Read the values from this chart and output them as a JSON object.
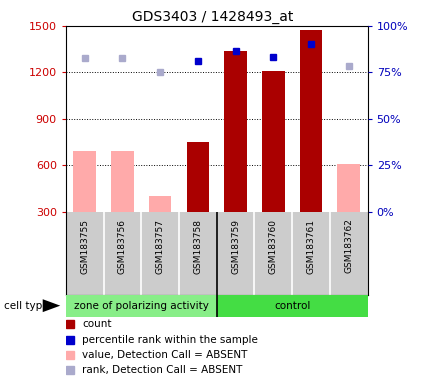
{
  "title": "GDS3403 / 1428493_at",
  "samples": [
    "GSM183755",
    "GSM183756",
    "GSM183757",
    "GSM183758",
    "GSM183759",
    "GSM183760",
    "GSM183761",
    "GSM183762"
  ],
  "bar_values": [
    null,
    null,
    null,
    750,
    1340,
    1210,
    1470,
    null
  ],
  "bar_absent_values": [
    690,
    690,
    400,
    null,
    null,
    null,
    null,
    610
  ],
  "rank_present": [
    null,
    null,
    null,
    1270,
    1340,
    1300,
    1380,
    null
  ],
  "rank_absent": [
    1290,
    1290,
    1200,
    null,
    null,
    null,
    null,
    1240
  ],
  "ylim": [
    300,
    1500
  ],
  "y_ticks": [
    300,
    600,
    900,
    1200,
    1500
  ],
  "right_ylim": [
    0,
    100
  ],
  "right_yticks": [
    0,
    25,
    50,
    75,
    100
  ],
  "right_yticklabels": [
    "0%",
    "25%",
    "50%",
    "75%",
    "100%"
  ],
  "bar_color_present": "#aa0000",
  "bar_color_absent": "#ffaaaa",
  "rank_color_present": "#0000cc",
  "rank_color_absent": "#aaaacc",
  "group1_label": "zone of polarizing activity",
  "group2_label": "control",
  "group1_color": "#88ee88",
  "group2_color": "#44dd44",
  "bg_color": "#cccccc",
  "plot_bg": "#ffffff",
  "left_tick_color": "#cc0000",
  "right_tick_color": "#0000bb",
  "legend_items": [
    {
      "color": "#aa0000",
      "label": "count"
    },
    {
      "color": "#0000cc",
      "label": "percentile rank within the sample"
    },
    {
      "color": "#ffaaaa",
      "label": "value, Detection Call = ABSENT"
    },
    {
      "color": "#aaaacc",
      "label": "rank, Detection Call = ABSENT"
    }
  ]
}
